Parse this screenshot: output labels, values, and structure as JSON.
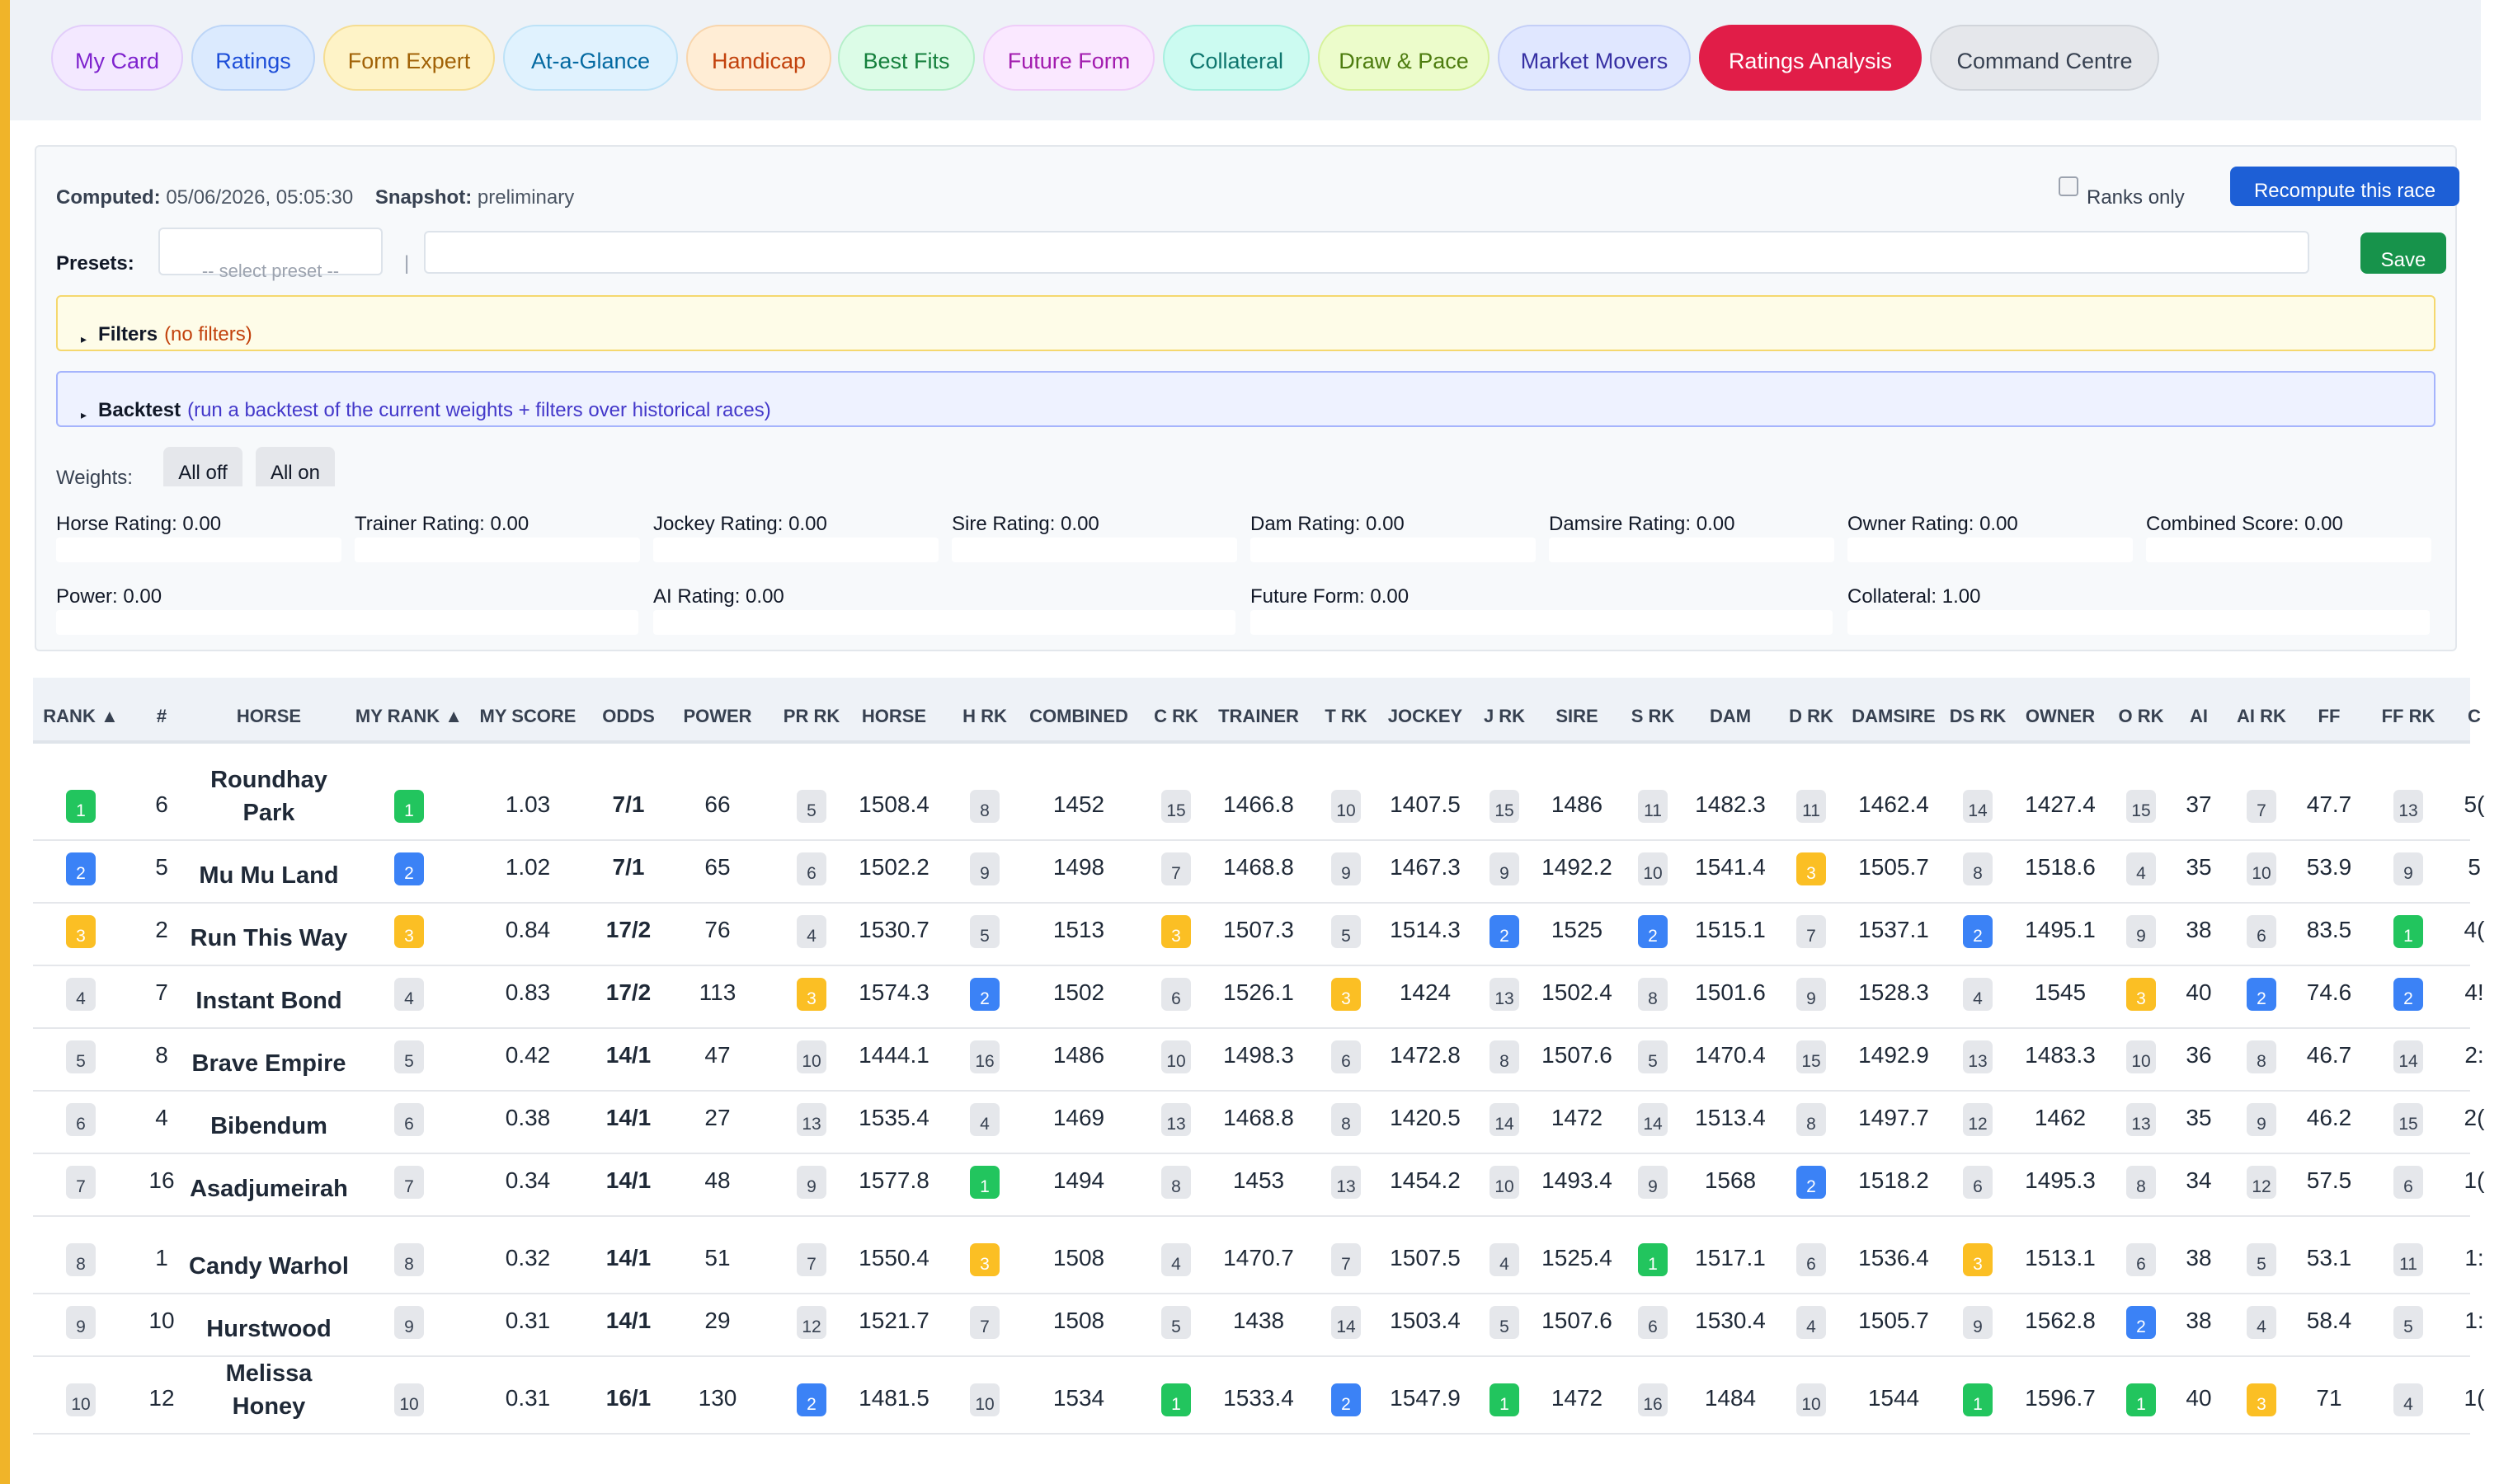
{
  "tabs": [
    {
      "label": "My Card",
      "bg": "#f3e8ff",
      "border": "#e2cdfa",
      "color": "#7e22ce"
    },
    {
      "label": "Ratings",
      "bg": "#dbeafe",
      "border": "#bcd5f7",
      "color": "#1d4ed8"
    },
    {
      "label": "Form Expert",
      "bg": "#fef3c7",
      "border": "#f5dd92",
      "color": "#a16207"
    },
    {
      "label": "At-a-Glance",
      "bg": "#e0f2fe",
      "border": "#bde2f7",
      "color": "#0369a1"
    },
    {
      "label": "Handicap",
      "bg": "#ffedd5",
      "border": "#f8d5ac",
      "color": "#c2410c"
    },
    {
      "label": "Best Fits",
      "bg": "#dcfce7",
      "border": "#b5efc9",
      "color": "#15803d"
    },
    {
      "label": "Future Form",
      "bg": "#fae8ff",
      "border": "#efcdf9",
      "color": "#a21caf"
    },
    {
      "label": "Collateral",
      "bg": "#ccfbf1",
      "border": "#a7efdf",
      "color": "#0f766e"
    },
    {
      "label": "Draw & Pace",
      "bg": "#ecfccb",
      "border": "#d6f29b",
      "color": "#4d7c0f"
    },
    {
      "label": "Market Movers",
      "bg": "#e0e7ff",
      "border": "#c4cff7",
      "color": "#3730a3"
    },
    {
      "label": "Ratings Analysis",
      "bg": "#e11d48",
      "border": "#e11d48",
      "color": "#ffffff"
    },
    {
      "label": "Command Centre",
      "bg": "#e5e7eb",
      "border": "#d1d5db",
      "color": "#374151"
    }
  ],
  "meta": {
    "computed_label": "Computed:",
    "computed_value": "05/06/2026, 05:05:30",
    "snapshot_label": "Snapshot:",
    "snapshot_value": "preliminary",
    "ranks_only_label": "Ranks only",
    "recompute_label": "Recompute this race"
  },
  "presets": {
    "label": "Presets:",
    "select_placeholder": "-- select preset --",
    "separator": "|",
    "name_value": "",
    "save_label": "Save"
  },
  "filters": {
    "title": "Filters",
    "hint": "(no filters)"
  },
  "backtest": {
    "title": "Backtest",
    "hint": "(run a backtest of the current weights + filters over historical races)"
  },
  "weights": {
    "label": "Weights:",
    "all_off": "All off",
    "all_on": "All on",
    "items": [
      "Horse Rating: 0.00",
      "Trainer Rating: 0.00",
      "Jockey Rating: 0.00",
      "Sire Rating: 0.00",
      "Dam Rating: 0.00",
      "Damsire Rating: 0.00",
      "Owner Rating: 0.00",
      "Combined Score: 0.00",
      "Power: 0.00",
      "AI Rating: 0.00",
      "Future Form: 0.00",
      "Collateral: 1.00"
    ]
  },
  "table": {
    "headers": [
      "RANK ▲",
      "#",
      "HORSE",
      "MY RANK ▲",
      "MY SCORE",
      "ODDS",
      "POWER",
      "PR RK",
      "HORSE",
      "H RK",
      "COMBINED",
      "C RK",
      "TRAINER",
      "T RK",
      "JOCKEY",
      "J RK",
      "SIRE",
      "S RK",
      "DAM",
      "D RK",
      "DAMSIRE",
      "DS RK",
      "OWNER",
      "O RK",
      "AI",
      "AI RK",
      "FF",
      "FF RK",
      "C"
    ],
    "rows": [
      [
        "1",
        "6",
        "Roundhay Park",
        "1",
        "1.03",
        "7/1",
        "66",
        "5",
        "1508.4",
        "8",
        "1452",
        "15",
        "1466.8",
        "10",
        "1407.5",
        "15",
        "1486",
        "11",
        "1482.3",
        "11",
        "1462.4",
        "14",
        "1427.4",
        "15",
        "37",
        "7",
        "47.7",
        "13",
        "5("
      ],
      [
        "2",
        "5",
        "Mu Mu Land",
        "2",
        "1.02",
        "7/1",
        "65",
        "6",
        "1502.2",
        "9",
        "1498",
        "7",
        "1468.8",
        "9",
        "1467.3",
        "9",
        "1492.2",
        "10",
        "1541.4",
        "3",
        "1505.7",
        "8",
        "1518.6",
        "4",
        "35",
        "10",
        "53.9",
        "9",
        "5"
      ],
      [
        "3",
        "2",
        "Run This Way",
        "3",
        "0.84",
        "17/2",
        "76",
        "4",
        "1530.7",
        "5",
        "1513",
        "3",
        "1507.3",
        "5",
        "1514.3",
        "2",
        "1525",
        "2",
        "1515.1",
        "7",
        "1537.1",
        "2",
        "1495.1",
        "9",
        "38",
        "6",
        "83.5",
        "1",
        "4("
      ],
      [
        "4",
        "7",
        "Instant Bond",
        "4",
        "0.83",
        "17/2",
        "113",
        "3",
        "1574.3",
        "2",
        "1502",
        "6",
        "1526.1",
        "3",
        "1424",
        "13",
        "1502.4",
        "8",
        "1501.6",
        "9",
        "1528.3",
        "4",
        "1545",
        "3",
        "40",
        "2",
        "74.6",
        "2",
        "4!"
      ],
      [
        "5",
        "8",
        "Brave Empire",
        "5",
        "0.42",
        "14/1",
        "47",
        "10",
        "1444.1",
        "16",
        "1486",
        "10",
        "1498.3",
        "6",
        "1472.8",
        "8",
        "1507.6",
        "5",
        "1470.4",
        "15",
        "1492.9",
        "13",
        "1483.3",
        "10",
        "36",
        "8",
        "46.7",
        "14",
        "2:"
      ],
      [
        "6",
        "4",
        "Bibendum",
        "6",
        "0.38",
        "14/1",
        "27",
        "13",
        "1535.4",
        "4",
        "1469",
        "13",
        "1468.8",
        "8",
        "1420.5",
        "14",
        "1472",
        "14",
        "1513.4",
        "8",
        "1497.7",
        "12",
        "1462",
        "13",
        "35",
        "9",
        "46.2",
        "15",
        "2("
      ],
      [
        "7",
        "16",
        "Asadjumeirah",
        "7",
        "0.34",
        "14/1",
        "48",
        "9",
        "1577.8",
        "1",
        "1494",
        "8",
        "1453",
        "13",
        "1454.2",
        "10",
        "1493.4",
        "9",
        "1568",
        "2",
        "1518.2",
        "6",
        "1495.3",
        "8",
        "34",
        "12",
        "57.5",
        "6",
        "1("
      ],
      [
        "8",
        "1",
        "Candy Warhol",
        "8",
        "0.32",
        "14/1",
        "51",
        "7",
        "1550.4",
        "3",
        "1508",
        "4",
        "1470.7",
        "7",
        "1507.5",
        "4",
        "1525.4",
        "1",
        "1517.1",
        "6",
        "1536.4",
        "3",
        "1513.1",
        "6",
        "38",
        "5",
        "53.1",
        "11",
        "1:"
      ],
      [
        "9",
        "10",
        "Hurstwood",
        "9",
        "0.31",
        "14/1",
        "29",
        "12",
        "1521.7",
        "7",
        "1508",
        "5",
        "1438",
        "14",
        "1503.4",
        "5",
        "1507.6",
        "6",
        "1530.4",
        "4",
        "1505.7",
        "9",
        "1562.8",
        "2",
        "38",
        "4",
        "58.4",
        "5",
        "1:"
      ],
      [
        "10",
        "12",
        "Melissa Honey",
        "10",
        "0.31",
        "16/1",
        "130",
        "2",
        "1481.5",
        "10",
        "1534",
        "1",
        "1533.4",
        "2",
        "1547.9",
        "1",
        "1472",
        "16",
        "1484",
        "10",
        "1544",
        "1",
        "1596.7",
        "1",
        "40",
        "3",
        "71",
        "4",
        "1("
      ]
    ]
  }
}
